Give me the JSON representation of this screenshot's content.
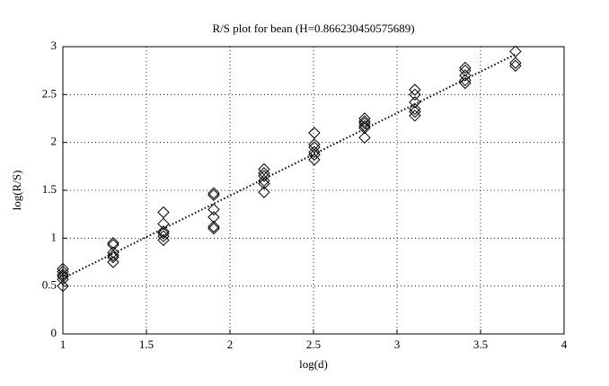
{
  "chart_data": {
    "type": "scatter",
    "title": "R/S plot for bean (H=0.866230450575689)",
    "xlabel": "log(d)",
    "ylabel": "log(R/S)",
    "xlim": [
      1,
      4
    ],
    "ylim": [
      0,
      3
    ],
    "xticks": [
      1,
      1.5,
      2,
      2.5,
      3,
      3.5,
      4
    ],
    "yticks": [
      0,
      0.5,
      1,
      1.5,
      2,
      2.5,
      3
    ],
    "grid": true,
    "series": [
      {
        "type": "scatter",
        "marker": "diamond",
        "color": "#000000",
        "x": [
          1,
          1,
          1,
          1,
          1,
          1,
          1.301,
          1.301,
          1.301,
          1.301,
          1.301,
          1.301,
          1.602,
          1.602,
          1.602,
          1.602,
          1.602,
          1.602,
          1.903,
          1.903,
          1.903,
          1.903,
          1.903,
          1.903,
          2.204,
          2.204,
          2.204,
          2.204,
          2.204,
          2.204,
          2.505,
          2.505,
          2.505,
          2.505,
          2.505,
          2.505,
          2.806,
          2.806,
          2.806,
          2.806,
          2.806,
          2.806,
          3.107,
          3.107,
          3.107,
          3.107,
          3.107,
          3.107,
          3.408,
          3.408,
          3.408,
          3.408,
          3.408,
          3.709,
          3.709,
          3.709
        ],
        "values": [
          0.68,
          0.65,
          0.62,
          0.6,
          0.57,
          0.5,
          0.95,
          0.93,
          0.85,
          0.82,
          0.8,
          0.75,
          1.27,
          1.15,
          1.07,
          1.05,
          1.02,
          0.98,
          1.47,
          1.45,
          1.3,
          1.22,
          1.12,
          1.1,
          1.72,
          1.68,
          1.65,
          1.6,
          1.57,
          1.48,
          2.1,
          1.98,
          1.95,
          1.9,
          1.87,
          1.82,
          2.25,
          2.22,
          2.2,
          2.17,
          2.15,
          2.05,
          2.55,
          2.5,
          2.42,
          2.35,
          2.32,
          2.28,
          2.78,
          2.75,
          2.7,
          2.65,
          2.62,
          2.95,
          2.83,
          2.8
        ]
      },
      {
        "type": "line",
        "style": "dotted",
        "color": "#000000",
        "x": [
          1,
          3.709
        ],
        "values": [
          0.58,
          2.92
        ]
      }
    ]
  }
}
